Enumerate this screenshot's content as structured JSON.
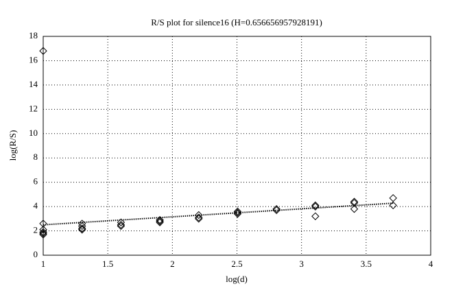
{
  "chart_data": {
    "type": "scatter",
    "title": "R/S plot for silence16 (H=0.656656957928191)",
    "xlabel": "log(d)",
    "ylabel": "log(R/S)",
    "xlim": [
      1,
      4
    ],
    "ylim": [
      0,
      18
    ],
    "xticks": [
      1,
      1.5,
      2,
      2.5,
      3,
      3.5,
      4
    ],
    "yticks": [
      0,
      2,
      4,
      6,
      8,
      10,
      12,
      14,
      16,
      18
    ],
    "grid": true,
    "series": [
      {
        "type": "scatter",
        "marker": "diamond",
        "color": "#000000",
        "x": [
          1,
          1,
          1,
          1,
          1,
          1,
          1.301,
          1.301,
          1.301,
          1.301,
          1.602,
          1.602,
          1.602,
          1.903,
          1.903,
          1.903,
          2.204,
          2.204,
          2.204,
          2.505,
          2.505,
          2.505,
          2.806,
          2.806,
          3.107,
          3.107,
          3.107,
          3.408,
          3.408,
          3.408,
          3.709,
          3.709
        ],
        "values": [
          16.8,
          2.6,
          2.1,
          1.9,
          1.8,
          1.7,
          2.6,
          2.4,
          2.2,
          2.1,
          2.7,
          2.5,
          2.4,
          2.9,
          2.8,
          2.7,
          3.3,
          3.1,
          3.0,
          3.6,
          3.5,
          3.4,
          3.8,
          3.7,
          4.1,
          4.0,
          3.2,
          4.4,
          4.3,
          3.8,
          4.7,
          4.1
        ]
      },
      {
        "type": "line",
        "style": "dotted",
        "color": "#000000",
        "x": [
          1,
          3.709
        ],
        "values": [
          2.5,
          4.28
        ]
      }
    ]
  }
}
